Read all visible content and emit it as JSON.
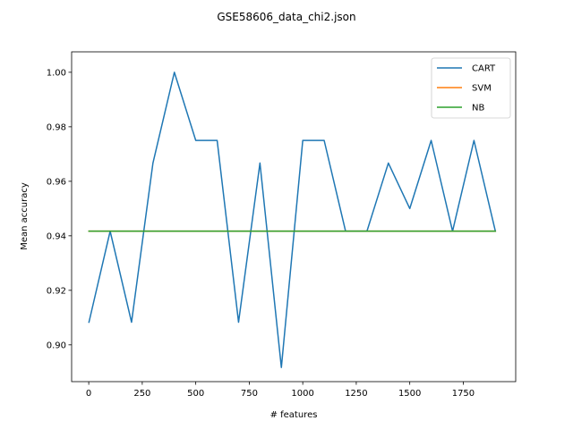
{
  "chart_data": {
    "type": "line",
    "title": "GSE58606_data_chi2.json",
    "xlabel": "# features",
    "ylabel": "Mean accuracy",
    "xlim": [
      -80,
      1995
    ],
    "ylim": [
      0.8865,
      1.0075
    ],
    "xticks": [
      0,
      250,
      500,
      750,
      1000,
      1250,
      1500,
      1750
    ],
    "xtick_labels": [
      "0",
      "250",
      "500",
      "750",
      "1000",
      "1250",
      "1500",
      "1750"
    ],
    "yticks": [
      0.9,
      0.92,
      0.94,
      0.96,
      0.98,
      1.0
    ],
    "ytick_labels": [
      "0.90",
      "0.92",
      "0.94",
      "0.96",
      "0.98",
      "1.00"
    ],
    "grid": false,
    "legend_position": "top-right",
    "x": [
      1,
      100,
      200,
      300,
      400,
      500,
      600,
      700,
      800,
      900,
      1000,
      1100,
      1200,
      1300,
      1400,
      1500,
      1600,
      1700,
      1800,
      1900
    ],
    "series": [
      {
        "name": "CART",
        "color": "#1f77b4",
        "values": [
          0.9083,
          0.9417,
          0.9083,
          0.9667,
          1.0,
          0.975,
          0.975,
          0.9083,
          0.9667,
          0.8917,
          0.975,
          0.975,
          0.9417,
          0.9417,
          0.9667,
          0.95,
          0.975,
          0.9417,
          0.975,
          0.9417
        ]
      },
      {
        "name": "SVM",
        "color": "#ff7f0e",
        "values": [
          0.9417,
          0.9417,
          0.9417,
          0.9417,
          0.9417,
          0.9417,
          0.9417,
          0.9417,
          0.9417,
          0.9417,
          0.9417,
          0.9417,
          0.9417,
          0.9417,
          0.9417,
          0.9417,
          0.9417,
          0.9417,
          0.9417,
          0.9417
        ]
      },
      {
        "name": "NB",
        "color": "#2ca02c",
        "values": [
          0.9417,
          0.9417,
          0.9417,
          0.9417,
          0.9417,
          0.9417,
          0.9417,
          0.9417,
          0.9417,
          0.9417,
          0.9417,
          0.9417,
          0.9417,
          0.9417,
          0.9417,
          0.9417,
          0.9417,
          0.9417,
          0.9417,
          0.9417
        ]
      }
    ]
  }
}
